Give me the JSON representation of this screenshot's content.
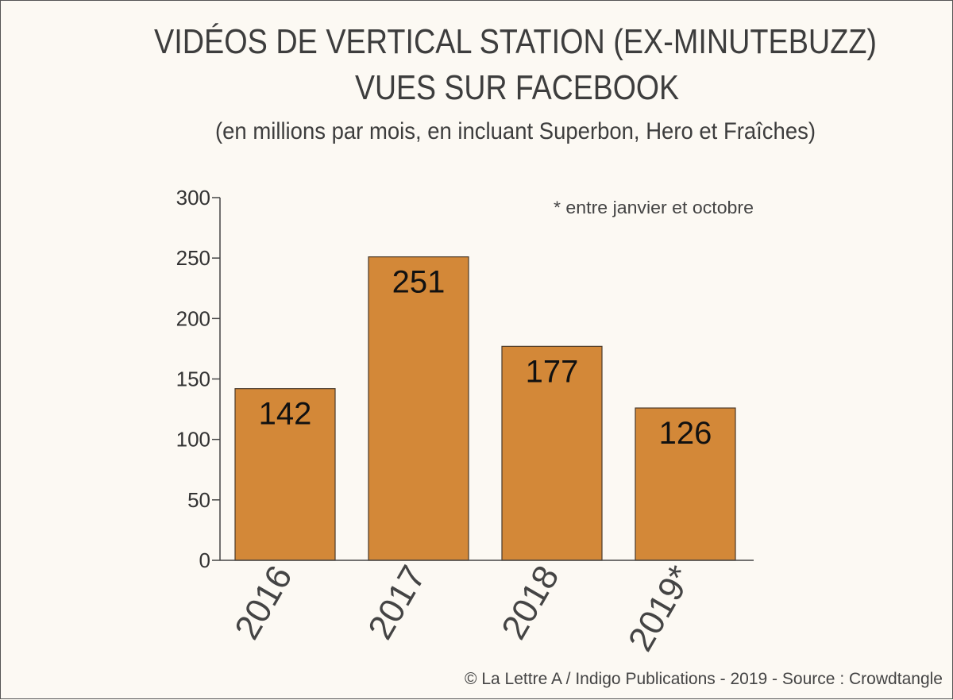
{
  "chart_data": {
    "type": "bar",
    "title_line1": "VIDÉOS DE VERTICAL STATION (EX-MINUTEBUZZ)",
    "title_line2": "VUES SUR FACEBOOK",
    "subtitle": "(en millions par mois, en incluant Superbon, Hero et Fraîches)",
    "note": "* entre janvier et octobre",
    "source": "© La Lettre A / Indigo Publications - 2019 - Source : Crowdtangle",
    "categories": [
      "2016",
      "2017",
      "2018",
      "2019*"
    ],
    "values": [
      142,
      251,
      177,
      126
    ],
    "data_labels": [
      "142",
      "251",
      "177",
      "126"
    ],
    "ylim": [
      0,
      300
    ],
    "yticks": [
      0,
      50,
      100,
      150,
      200,
      250,
      300
    ],
    "ytick_labels": [
      "0",
      "50",
      "100",
      "150",
      "200",
      "250",
      "300"
    ],
    "grid": false,
    "colors": {
      "bar": "#d38838",
      "bar_edge": "#4a3a2a",
      "axis": "#444444",
      "background": "#fcf9f3"
    }
  }
}
